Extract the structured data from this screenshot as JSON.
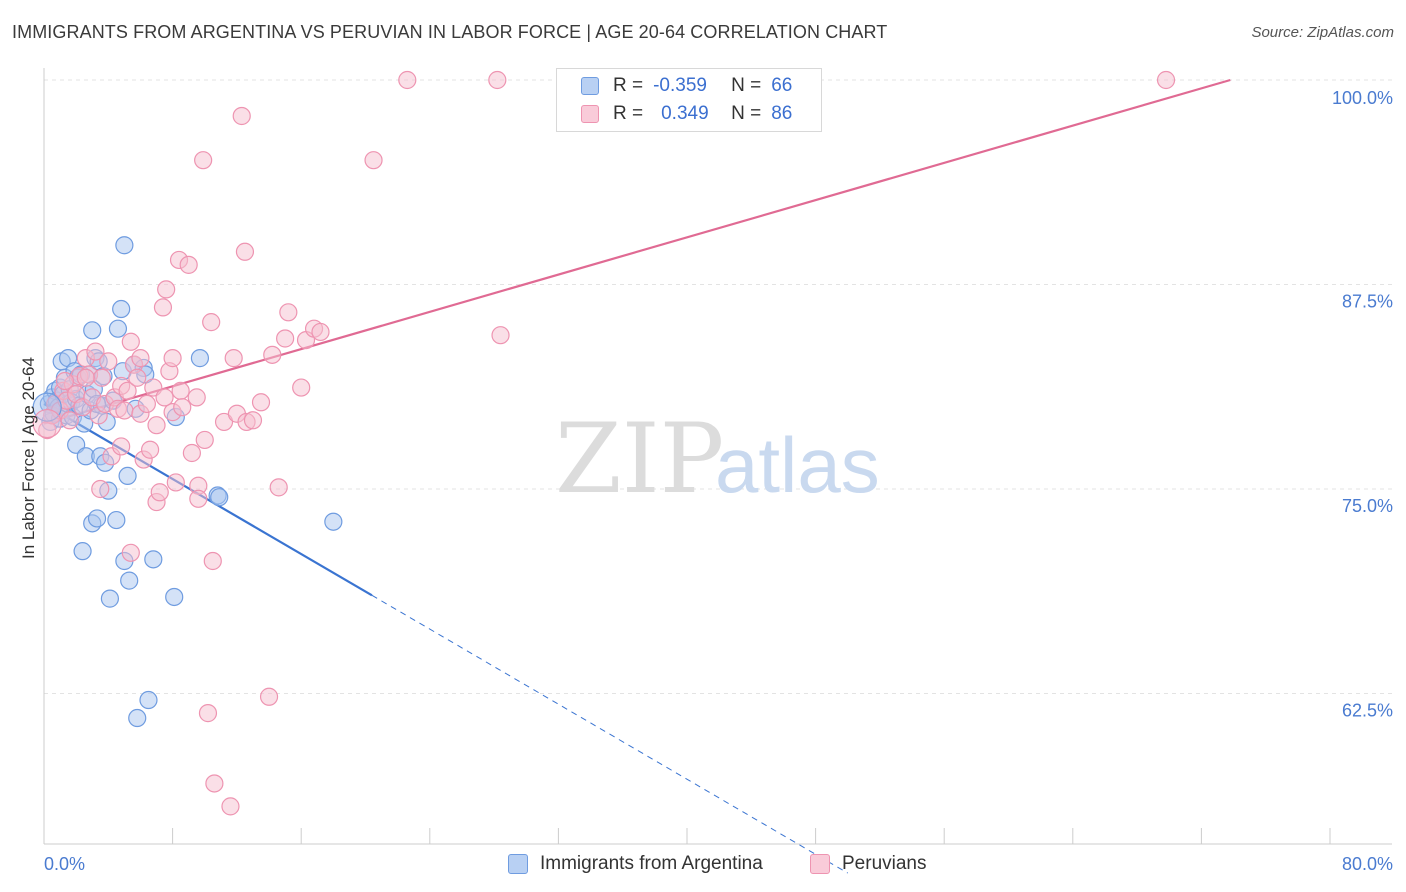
{
  "header": {
    "title": "IMMIGRANTS FROM ARGENTINA VS PERUVIAN IN LABOR FORCE | AGE 20-64 CORRELATION CHART",
    "source": "Source: ZipAtlas.com"
  },
  "watermark": {
    "part1": "ZIP",
    "part2": "atlas"
  },
  "legend": {
    "rows": [
      {
        "r_label": "R =",
        "r_value": "-0.359",
        "n_label": "N =",
        "n_value": "66"
      },
      {
        "r_label": "R =",
        "r_value": "0.349",
        "n_label": "N =",
        "n_value": "86"
      }
    ]
  },
  "bottom_legend": {
    "series1": "Immigrants from Argentina",
    "series2": "Peruvians"
  },
  "colors": {
    "blue_fill": "#a9c6f0",
    "blue_stroke": "#6f9ce0",
    "blue_line": "#3a74d1",
    "pink_fill": "#f6bfd0",
    "pink_stroke": "#ee94b1",
    "pink_line": "#e06a93",
    "tick_text": "#4a7bd0"
  },
  "chart_data": {
    "type": "scatter",
    "ylabel": "In Labor Force | Age 20-64",
    "xlabel": "",
    "xlim": [
      0,
      80
    ],
    "ylim": [
      50,
      100
    ],
    "x_ticks": [
      "0.0%",
      "80.0%"
    ],
    "y_ticks": [
      {
        "value": 100,
        "label": "100.0%"
      },
      {
        "value": 87.5,
        "label": "87.5%"
      },
      {
        "value": 75,
        "label": "75.0%"
      },
      {
        "value": 62.5,
        "label": "62.5%"
      }
    ],
    "grid": true,
    "legend_position": "top-center",
    "series": [
      {
        "name": "Immigrants from Argentina",
        "color": "#a9c6f0",
        "trend": {
          "x0": 0,
          "y0": 80.2,
          "x1": 20.4,
          "y1": 68.5,
          "dash_to_x": 50.0
        },
        "points": [
          [
            0.3,
            80.2
          ],
          [
            0.4,
            79.1
          ],
          [
            0.5,
            80.6
          ],
          [
            0.6,
            79.6
          ],
          [
            0.7,
            81.0
          ],
          [
            0.8,
            80.4
          ],
          [
            0.9,
            80.0
          ],
          [
            1.0,
            81.2
          ],
          [
            1.0,
            79.3
          ],
          [
            1.1,
            82.8
          ],
          [
            1.2,
            80.8
          ],
          [
            1.3,
            81.8
          ],
          [
            1.4,
            79.5
          ],
          [
            1.5,
            80.2
          ],
          [
            1.5,
            83.0
          ],
          [
            1.6,
            81.1
          ],
          [
            1.7,
            80.3
          ],
          [
            1.8,
            79.4
          ],
          [
            1.9,
            82.2
          ],
          [
            2.0,
            80.5
          ],
          [
            2.0,
            77.7
          ],
          [
            2.1,
            81.8
          ],
          [
            2.2,
            80.1
          ],
          [
            2.3,
            82.0
          ],
          [
            2.4,
            71.2
          ],
          [
            2.5,
            79.0
          ],
          [
            2.6,
            77.0
          ],
          [
            2.7,
            80.8
          ],
          [
            2.8,
            82.0
          ],
          [
            2.9,
            79.8
          ],
          [
            3.0,
            84.7
          ],
          [
            3.0,
            72.9
          ],
          [
            3.1,
            81.1
          ],
          [
            3.2,
            83.0
          ],
          [
            3.3,
            73.2
          ],
          [
            3.4,
            82.8
          ],
          [
            3.5,
            77.0
          ],
          [
            3.6,
            80.1
          ],
          [
            3.7,
            81.9
          ],
          [
            3.8,
            76.6
          ],
          [
            3.9,
            79.1
          ],
          [
            4.0,
            74.9
          ],
          [
            4.1,
            68.3
          ],
          [
            4.3,
            80.4
          ],
          [
            4.5,
            73.1
          ],
          [
            4.6,
            84.8
          ],
          [
            4.8,
            86.0
          ],
          [
            4.9,
            82.2
          ],
          [
            5.0,
            89.9
          ],
          [
            5.0,
            70.6
          ],
          [
            5.2,
            75.8
          ],
          [
            5.3,
            69.4
          ],
          [
            5.6,
            82.6
          ],
          [
            5.7,
            79.9
          ],
          [
            5.8,
            61.0
          ],
          [
            6.2,
            82.4
          ],
          [
            6.3,
            82.0
          ],
          [
            6.5,
            62.1
          ],
          [
            6.8,
            70.7
          ],
          [
            8.1,
            68.4
          ],
          [
            8.2,
            79.4
          ],
          [
            9.7,
            83.0
          ],
          [
            10.8,
            74.6
          ],
          [
            10.9,
            74.5
          ],
          [
            18.0,
            73.0
          ],
          [
            3.3,
            80.2
          ]
        ]
      },
      {
        "name": "Peruvians",
        "color": "#f6bfd0",
        "trend": {
          "x0": 0,
          "y0": 79.0,
          "x1": 73.8,
          "y1": 100.0
        },
        "points": [
          [
            0.2,
            78.6
          ],
          [
            0.5,
            79.5
          ],
          [
            0.7,
            80.2
          ],
          [
            1.0,
            79.8
          ],
          [
            1.2,
            81.0
          ],
          [
            1.4,
            80.4
          ],
          [
            1.6,
            79.2
          ],
          [
            1.8,
            81.4
          ],
          [
            2.0,
            80.8
          ],
          [
            2.2,
            81.9
          ],
          [
            2.4,
            80.0
          ],
          [
            2.6,
            83.0
          ],
          [
            2.8,
            82.0
          ],
          [
            3.0,
            80.6
          ],
          [
            3.2,
            83.4
          ],
          [
            3.4,
            79.5
          ],
          [
            3.6,
            81.8
          ],
          [
            3.8,
            80.2
          ],
          [
            4.0,
            82.8
          ],
          [
            4.2,
            77.0
          ],
          [
            4.4,
            80.6
          ],
          [
            4.6,
            79.9
          ],
          [
            4.8,
            81.3
          ],
          [
            5.0,
            79.8
          ],
          [
            5.2,
            81.0
          ],
          [
            5.4,
            84.0
          ],
          [
            5.6,
            82.6
          ],
          [
            5.8,
            81.8
          ],
          [
            6.0,
            79.6
          ],
          [
            6.2,
            76.8
          ],
          [
            6.4,
            80.2
          ],
          [
            6.6,
            77.4
          ],
          [
            6.8,
            81.2
          ],
          [
            7.0,
            78.9
          ],
          [
            7.0,
            74.2
          ],
          [
            7.2,
            74.8
          ],
          [
            7.4,
            86.1
          ],
          [
            7.6,
            87.2
          ],
          [
            7.8,
            82.2
          ],
          [
            8.0,
            83.0
          ],
          [
            8.0,
            79.7
          ],
          [
            8.2,
            75.4
          ],
          [
            8.4,
            89.0
          ],
          [
            8.5,
            81.0
          ],
          [
            8.6,
            80.0
          ],
          [
            9.0,
            88.7
          ],
          [
            9.2,
            77.2
          ],
          [
            9.5,
            80.6
          ],
          [
            9.6,
            75.2
          ],
          [
            9.9,
            95.1
          ],
          [
            10.0,
            78.0
          ],
          [
            10.5,
            70.6
          ],
          [
            10.2,
            61.3
          ],
          [
            10.4,
            85.2
          ],
          [
            10.6,
            57.0
          ],
          [
            11.2,
            79.1
          ],
          [
            11.6,
            55.6
          ],
          [
            11.8,
            83.0
          ],
          [
            12.0,
            79.6
          ],
          [
            12.3,
            97.8
          ],
          [
            12.6,
            79.1
          ],
          [
            12.5,
            89.5
          ],
          [
            13.0,
            79.2
          ],
          [
            13.5,
            80.3
          ],
          [
            14.0,
            62.3
          ],
          [
            14.2,
            83.2
          ],
          [
            14.6,
            75.1
          ],
          [
            15.0,
            84.2
          ],
          [
            15.2,
            85.8
          ],
          [
            16.0,
            81.2
          ],
          [
            16.3,
            84.1
          ],
          [
            16.8,
            84.8
          ],
          [
            17.2,
            84.6
          ],
          [
            20.5,
            95.1
          ],
          [
            22.6,
            100.0
          ],
          [
            28.2,
            100.0
          ],
          [
            28.4,
            84.4
          ],
          [
            69.8,
            100.0
          ],
          [
            5.4,
            71.1
          ],
          [
            3.5,
            75.0
          ],
          [
            9.6,
            74.4
          ],
          [
            4.8,
            77.6
          ],
          [
            2.6,
            81.8
          ],
          [
            6.0,
            83.0
          ],
          [
            1.3,
            81.6
          ],
          [
            7.5,
            80.6
          ]
        ]
      }
    ]
  }
}
